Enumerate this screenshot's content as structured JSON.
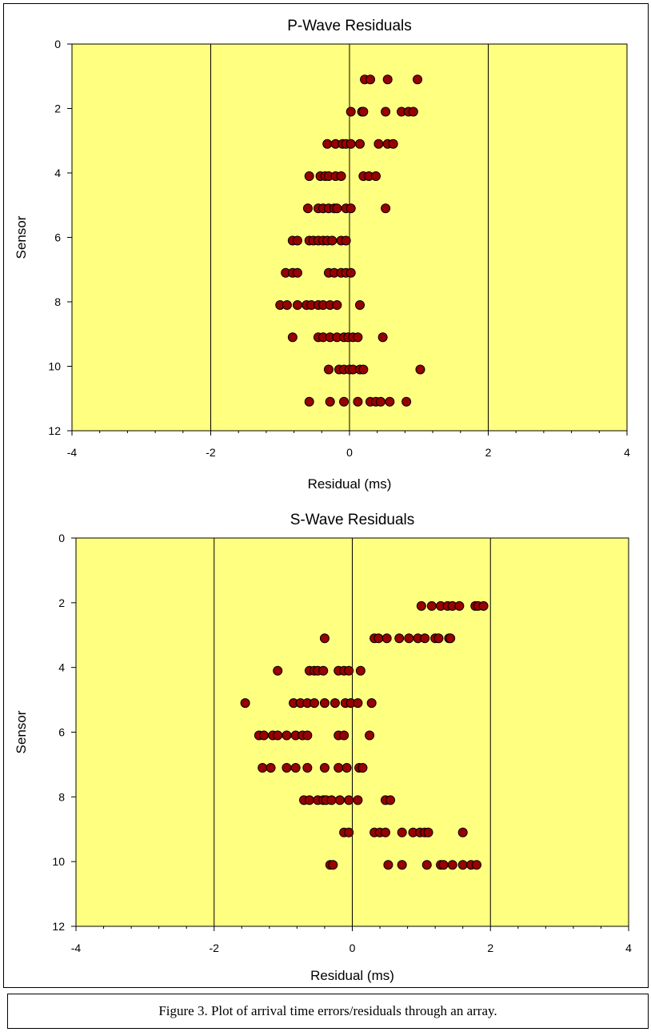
{
  "caption": "Figure 3. Plot of arrival time errors/residuals through an array.",
  "colors": {
    "plot_background": "#ffff80",
    "marker_fill": "#990000",
    "marker_stroke": "#000000",
    "gridline": "#000000"
  },
  "chart_data": [
    {
      "type": "scatter",
      "title": "P-Wave Residuals",
      "xlabel": "Residual (ms)",
      "ylabel": "Sensor",
      "xlim": [
        -4,
        4
      ],
      "ylim": [
        0,
        12
      ],
      "y_inverted": true,
      "x_ticks": [
        "-4",
        "-2",
        "0",
        "2",
        "4"
      ],
      "y_ticks": [
        "0",
        "2",
        "4",
        "6",
        "8",
        "10",
        "12"
      ],
      "vertical_gridlines_at": [
        -2,
        0,
        2
      ],
      "points": [
        {
          "sensor": 1,
          "x": [
            0.22,
            0.3,
            0.55,
            0.98
          ]
        },
        {
          "sensor": 2,
          "x": [
            0.02,
            0.18,
            0.2,
            0.52,
            0.75,
            0.85,
            0.92
          ]
        },
        {
          "sensor": 3,
          "x": [
            -0.32,
            -0.2,
            -0.1,
            -0.05,
            0.02,
            0.15,
            0.42,
            0.55,
            0.63
          ]
        },
        {
          "sensor": 4,
          "x": [
            -0.58,
            -0.42,
            -0.35,
            -0.3,
            -0.2,
            -0.12,
            0.2,
            0.28,
            0.38
          ]
        },
        {
          "sensor": 5,
          "x": [
            -0.6,
            -0.45,
            -0.38,
            -0.3,
            -0.22,
            -0.18,
            -0.05,
            0.02,
            0.52
          ]
        },
        {
          "sensor": 6,
          "x": [
            -0.82,
            -0.75,
            -0.58,
            -0.52,
            -0.45,
            -0.38,
            -0.32,
            -0.25,
            -0.12,
            -0.05
          ]
        },
        {
          "sensor": 7,
          "x": [
            -0.92,
            -0.82,
            -0.75,
            -0.3,
            -0.22,
            -0.12,
            -0.05,
            0.02
          ]
        },
        {
          "sensor": 8,
          "x": [
            -1.0,
            -0.9,
            -0.75,
            -0.62,
            -0.55,
            -0.45,
            -0.38,
            -0.28,
            -0.18,
            0.15
          ]
        },
        {
          "sensor": 9,
          "x": [
            -0.82,
            -0.45,
            -0.38,
            -0.28,
            -0.18,
            -0.08,
            -0.02,
            0.05,
            0.12,
            0.48
          ]
        },
        {
          "sensor": 10,
          "x": [
            -0.3,
            -0.15,
            -0.08,
            0.0,
            0.05,
            0.15,
            0.2,
            1.02
          ]
        },
        {
          "sensor": 11,
          "x": [
            -0.58,
            -0.28,
            -0.08,
            0.12,
            0.3,
            0.38,
            0.45,
            0.58,
            0.82
          ]
        }
      ]
    },
    {
      "type": "scatter",
      "title": "S-Wave Residuals",
      "xlabel": "Residual (ms)",
      "ylabel": "Sensor",
      "xlim": [
        -4,
        4
      ],
      "ylim": [
        0,
        12
      ],
      "y_inverted": true,
      "x_ticks": [
        "-4",
        "-2",
        "0",
        "2",
        "4"
      ],
      "y_ticks": [
        "0",
        "2",
        "4",
        "6",
        "8",
        "10",
        "12"
      ],
      "vertical_gridlines_at": [
        -2,
        0,
        2
      ],
      "points": [
        {
          "sensor": 2,
          "x": [
            1.0,
            1.15,
            1.28,
            1.38,
            1.45,
            1.55,
            1.78,
            1.82,
            1.9
          ]
        },
        {
          "sensor": 3,
          "x": [
            -0.4,
            0.32,
            0.38,
            0.5,
            0.68,
            0.82,
            0.95,
            1.05,
            1.2,
            1.25,
            1.4,
            1.42
          ]
        },
        {
          "sensor": 4,
          "x": [
            -1.08,
            -0.62,
            -0.55,
            -0.5,
            -0.42,
            -0.2,
            -0.12,
            -0.05,
            0.12
          ]
        },
        {
          "sensor": 5,
          "x": [
            -1.55,
            -0.85,
            -0.75,
            -0.65,
            -0.55,
            -0.4,
            -0.25,
            -0.1,
            -0.02,
            0.08,
            0.28
          ]
        },
        {
          "sensor": 6,
          "x": [
            -1.35,
            -1.28,
            -1.15,
            -1.08,
            -0.95,
            -0.82,
            -0.72,
            -0.65,
            -0.2,
            -0.12,
            0.25
          ]
        },
        {
          "sensor": 7,
          "x": [
            -1.3,
            -1.18,
            -0.95,
            -0.82,
            -0.65,
            -0.4,
            -0.2,
            -0.08,
            0.1,
            0.15
          ]
        },
        {
          "sensor": 8,
          "x": [
            -0.7,
            -0.62,
            -0.5,
            -0.42,
            -0.38,
            -0.3,
            -0.18,
            -0.05,
            0.08,
            0.48,
            0.55
          ]
        },
        {
          "sensor": 9,
          "x": [
            -0.12,
            -0.05,
            0.32,
            0.4,
            0.48,
            0.72,
            0.88,
            0.98,
            1.05,
            1.1,
            1.6
          ]
        },
        {
          "sensor": 10,
          "x": [
            -0.32,
            -0.28,
            0.52,
            0.72,
            1.08,
            1.28,
            1.32,
            1.45,
            1.6,
            1.72,
            1.8
          ]
        }
      ]
    }
  ]
}
